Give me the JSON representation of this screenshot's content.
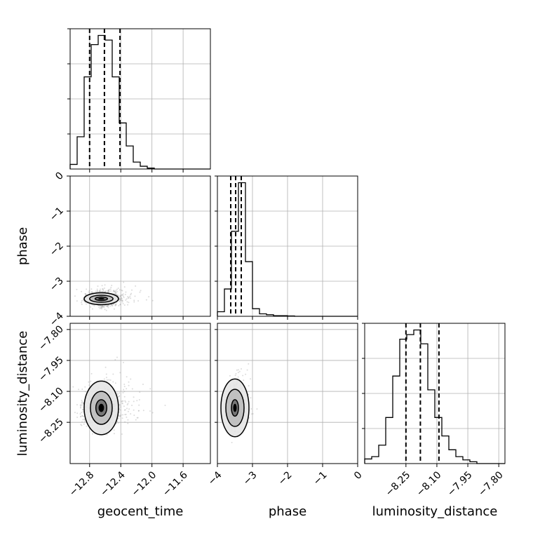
{
  "chart_data": {
    "type": "corner",
    "parameters": [
      "geocent_time",
      "phase",
      "luminosity_distance"
    ],
    "grid": true,
    "histograms": [
      {
        "name": "geocent_time",
        "range": [
          -13.05,
          -11.25
        ],
        "ticks": [
          -12.8,
          -12.4,
          -12.0,
          -11.6
        ],
        "tick_labels": [
          "−12.8",
          "−12.4",
          "−12.0",
          "−11.6"
        ],
        "bins": 20,
        "counts": [
          1,
          7,
          20,
          27,
          29,
          28,
          20,
          10,
          5,
          1.5,
          0.6,
          0.2,
          0,
          0,
          0,
          0,
          0,
          0,
          0,
          0
        ],
        "quantiles": [
          -12.8,
          -12.61,
          -12.41
        ]
      },
      {
        "name": "phase",
        "range": [
          -4.0,
          0.0
        ],
        "ticks": [
          -4,
          -3,
          -2,
          -1,
          0
        ],
        "tick_labels": [
          "−4",
          "−3",
          "−2",
          "−1",
          "0"
        ],
        "bins": 20,
        "counts": [
          1.5,
          9,
          28,
          44,
          18,
          2.5,
          0.8,
          0.5,
          0.2,
          0.2,
          0.1,
          0,
          0,
          0,
          0,
          0,
          0,
          0,
          0,
          0
        ],
        "quantiles": [
          -3.62,
          -3.48,
          -3.32
        ]
      },
      {
        "name": "luminosity_distance",
        "range": [
          -8.45,
          -7.77
        ],
        "ticks": [
          -8.25,
          -8.1,
          -7.95,
          -7.8
        ],
        "tick_labels": [
          "−8.25",
          "−8.10",
          "−7.95",
          "−7.80"
        ],
        "bins": 20,
        "counts": [
          1,
          1.5,
          4,
          10,
          19,
          27,
          28,
          29,
          26,
          16,
          10,
          6,
          3,
          1.5,
          0.8,
          0.4,
          0,
          0,
          0,
          0
        ],
        "quantiles": [
          -8.25,
          -8.18,
          -8.09
        ]
      }
    ],
    "pairs": [
      {
        "x": "geocent_time",
        "y": "phase",
        "x_center": -12.65,
        "y_center": -3.5,
        "x_spread": 0.1,
        "y_spread": 0.1,
        "contours": [
          {
            "rx": 0.22,
            "ry": 0.17
          },
          {
            "rx": 0.15,
            "ry": 0.1
          },
          {
            "rx": 0.08,
            "ry": 0.05
          }
        ]
      },
      {
        "x": "geocent_time",
        "y": "luminosity_distance",
        "x_center": -12.65,
        "y_center": -8.18,
        "x_spread": 0.11,
        "y_spread": 0.05,
        "contours": [
          {
            "rx": 0.22,
            "ry": 0.13
          },
          {
            "rx": 0.14,
            "ry": 0.08
          },
          {
            "rx": 0.07,
            "ry": 0.04
          }
        ]
      },
      {
        "x": "phase",
        "y": "luminosity_distance",
        "x_center": -3.5,
        "y_center": -8.18,
        "x_spread": 0.09,
        "y_spread": 0.05,
        "contours": [
          {
            "rx": 0.4,
            "ry": 0.14
          },
          {
            "rx": 0.26,
            "ry": 0.09
          },
          {
            "rx": 0.1,
            "ry": 0.04
          }
        ]
      }
    ],
    "ylabels": {
      "phase": {
        "ticks": [
          0,
          -1,
          -2,
          -3,
          -4
        ],
        "tick_labels": [
          "0",
          "−1",
          "−2",
          "−3",
          "−4"
        ]
      },
      "luminosity_distance": {
        "ticks": [
          -7.8,
          -7.95,
          -8.1,
          -8.25
        ],
        "tick_labels": [
          "−7.80",
          "−7.95",
          "−8.10",
          "−8.25"
        ]
      }
    }
  }
}
